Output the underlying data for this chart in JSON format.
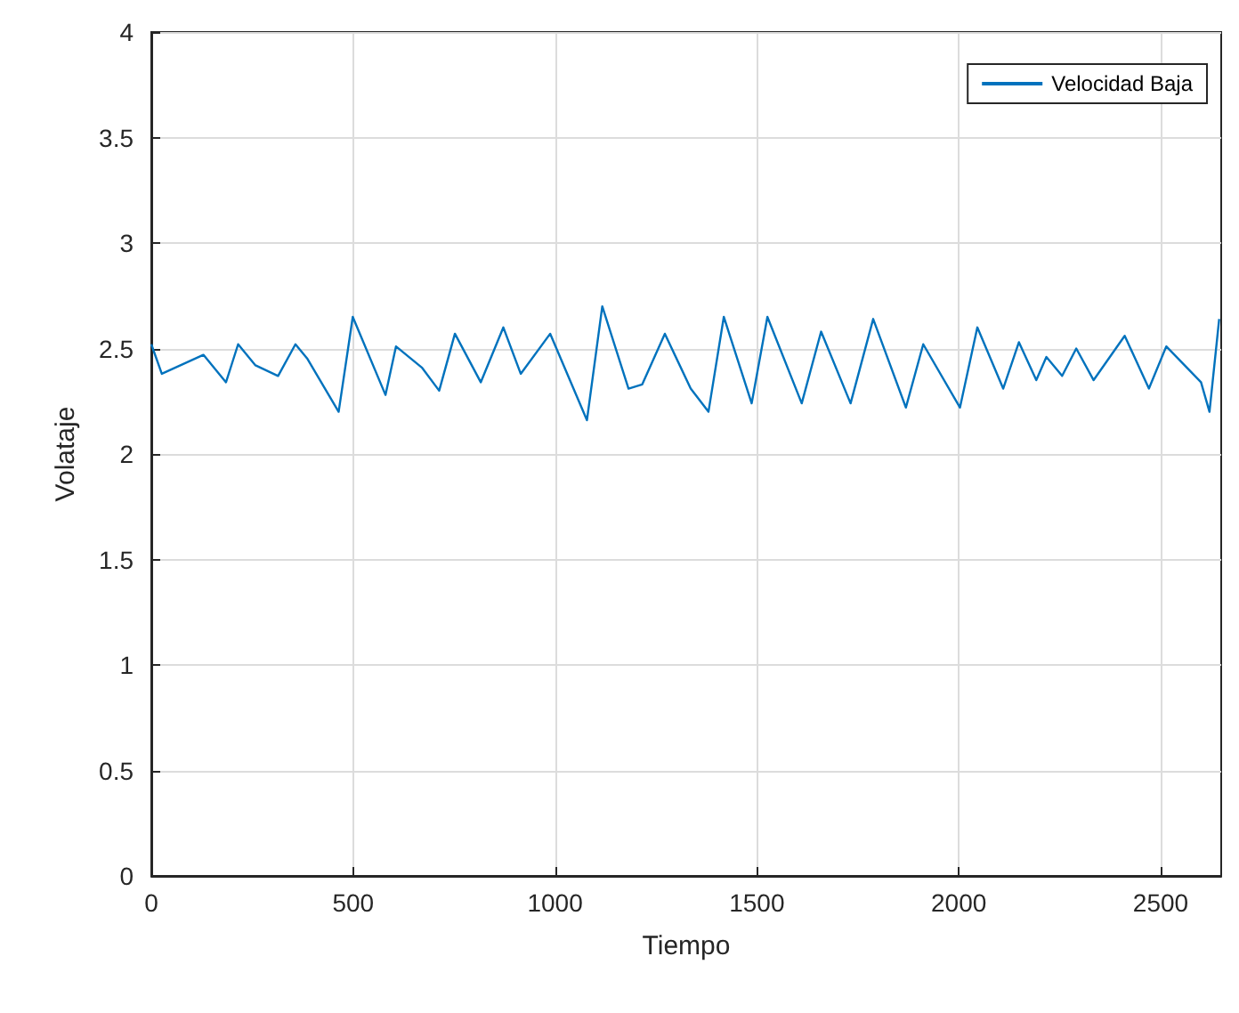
{
  "chart_data": {
    "type": "line",
    "xlabel": "Tiempo",
    "ylabel": "Volataje",
    "xlim": [
      0,
      2650
    ],
    "xticks": [
      0,
      500,
      1000,
      1500,
      2000,
      2500
    ],
    "ylim": [
      0,
      4
    ],
    "yticks": [
      0,
      0.5,
      1,
      1.5,
      2,
      2.5,
      3,
      3.5,
      4
    ],
    "grid": true,
    "legend": "top right",
    "marker": "none",
    "line_style": "solid",
    "series": [
      {
        "name": "Velocidad Baja",
        "color": "#0072bd",
        "x": [
          0,
          26,
          129,
          185,
          215,
          258,
          314,
          357,
          387,
          464,
          499,
          580,
          606,
          670,
          713,
          752,
          816,
          872,
          915,
          988,
          1079,
          1117,
          1182,
          1216,
          1272,
          1336,
          1380,
          1418,
          1487,
          1526,
          1611,
          1659,
          1732,
          1788,
          1869,
          1912,
          2003,
          2046,
          2110,
          2149,
          2192,
          2217,
          2256,
          2291,
          2334,
          2411,
          2471,
          2514,
          2600,
          2621,
          2645
        ],
        "values": [
          2.52,
          2.38,
          2.47,
          2.34,
          2.52,
          2.42,
          2.37,
          2.52,
          2.45,
          2.2,
          2.65,
          2.28,
          2.51,
          2.41,
          2.3,
          2.57,
          2.34,
          2.6,
          2.38,
          2.57,
          2.16,
          2.7,
          2.31,
          2.33,
          2.57,
          2.31,
          2.2,
          2.65,
          2.24,
          2.65,
          2.24,
          2.58,
          2.24,
          2.64,
          2.22,
          2.52,
          2.22,
          2.6,
          2.31,
          2.53,
          2.35,
          2.46,
          2.37,
          2.5,
          2.35,
          2.56,
          2.31,
          2.51,
          2.34,
          2.2,
          2.64
        ]
      }
    ]
  }
}
